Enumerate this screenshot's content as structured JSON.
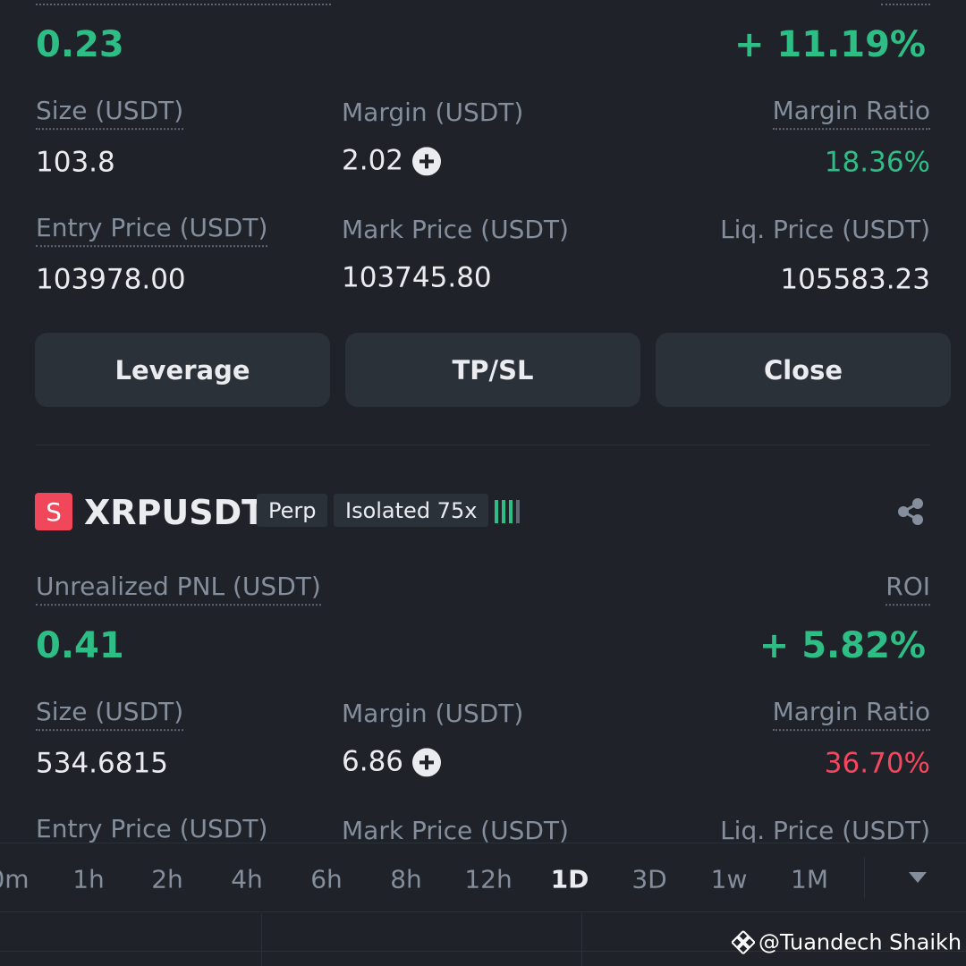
{
  "position1": {
    "pnl": "0.23",
    "roi": "+ 11.19%",
    "fields": [
      {
        "label": "Size (USDT)",
        "value": "103.8"
      },
      {
        "label": "Margin (USDT)",
        "value": "2.02"
      },
      {
        "label": "Margin Ratio",
        "value": "18.36%"
      },
      {
        "label": "Entry Price (USDT)",
        "value": "103978.00"
      },
      {
        "label": "Mark Price (USDT)",
        "value": "103745.80"
      },
      {
        "label": "Liq. Price (USDT)",
        "value": "105583.23"
      }
    ],
    "buttons": [
      "Leverage",
      "TP/SL",
      "Close"
    ]
  },
  "position2": {
    "badge": "S",
    "symbol": "XRPUSDT",
    "tags": [
      "Perp",
      "Isolated 75x"
    ],
    "pnl_label": "Unrealized PNL (USDT)",
    "roi_label": "ROI",
    "pnl": "0.41",
    "roi": "+ 5.82%",
    "fields": [
      {
        "label": "Size (USDT)",
        "value": "534.6815"
      },
      {
        "label": "Margin (USDT)",
        "value": "6.86"
      },
      {
        "label": "Margin Ratio",
        "value": "36.70%"
      },
      {
        "label": "Entry Price (USDT)"
      },
      {
        "label": "Mark Price (USDT)"
      },
      {
        "label": "Liq. Price (USDT)"
      }
    ]
  },
  "timeframes": [
    "0m",
    "1h",
    "2h",
    "4h",
    "6h",
    "8h",
    "12h",
    "1D",
    "3D",
    "1w",
    "1M"
  ],
  "watermark": "@Tuandech Shaikh"
}
